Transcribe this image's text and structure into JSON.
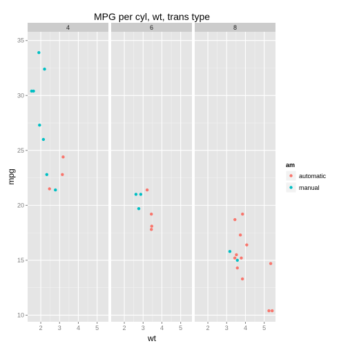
{
  "chart_data": {
    "type": "scatter",
    "title": "MPG per cyl, wt, trans type",
    "xlabel": "wt",
    "ylabel": "mpg",
    "xlim": [
      1.3,
      5.6
    ],
    "ylim": [
      9.4,
      35.8
    ],
    "xticks": [
      2,
      3,
      4,
      5
    ],
    "yticks": [
      10,
      15,
      20,
      25,
      30,
      35
    ],
    "grid": true,
    "legend_position": "right",
    "legend_title": "am",
    "series": [
      {
        "name": "automatic",
        "color": "#F8766D"
      },
      {
        "name": "manual",
        "color": "#00BFC4"
      }
    ],
    "facets": [
      {
        "label": "4",
        "points": [
          {
            "series": "automatic",
            "x": 2.465,
            "y": 21.5
          },
          {
            "series": "automatic",
            "x": 3.19,
            "y": 24.4
          },
          {
            "series": "automatic",
            "x": 3.15,
            "y": 22.8
          },
          {
            "series": "manual",
            "x": 2.2,
            "y": 32.4
          },
          {
            "series": "manual",
            "x": 1.9,
            "y": 33.9
          },
          {
            "series": "manual",
            "x": 1.615,
            "y": 30.4
          },
          {
            "series": "manual",
            "x": 1.513,
            "y": 30.4
          },
          {
            "series": "manual",
            "x": 1.935,
            "y": 27.3
          },
          {
            "series": "manual",
            "x": 2.14,
            "y": 26.0
          },
          {
            "series": "manual",
            "x": 2.32,
            "y": 22.8
          },
          {
            "series": "manual",
            "x": 2.78,
            "y": 21.4
          }
        ]
      },
      {
        "label": "6",
        "points": [
          {
            "series": "automatic",
            "x": 3.215,
            "y": 21.4
          },
          {
            "series": "automatic",
            "x": 3.46,
            "y": 18.1
          },
          {
            "series": "automatic",
            "x": 3.44,
            "y": 19.2
          },
          {
            "series": "automatic",
            "x": 3.44,
            "y": 17.8
          },
          {
            "series": "manual",
            "x": 2.62,
            "y": 21.0
          },
          {
            "series": "manual",
            "x": 2.875,
            "y": 21.0
          },
          {
            "series": "manual",
            "x": 2.77,
            "y": 19.7
          }
        ]
      },
      {
        "label": "8",
        "points": [
          {
            "series": "automatic",
            "x": 3.44,
            "y": 18.7
          },
          {
            "series": "automatic",
            "x": 3.57,
            "y": 14.3
          },
          {
            "series": "automatic",
            "x": 4.07,
            "y": 16.4
          },
          {
            "series": "automatic",
            "x": 3.73,
            "y": 17.3
          },
          {
            "series": "automatic",
            "x": 3.78,
            "y": 15.2
          },
          {
            "series": "automatic",
            "x": 5.25,
            "y": 10.4
          },
          {
            "series": "automatic",
            "x": 5.424,
            "y": 10.4
          },
          {
            "series": "automatic",
            "x": 5.345,
            "y": 14.7
          },
          {
            "series": "automatic",
            "x": 3.52,
            "y": 15.5
          },
          {
            "series": "automatic",
            "x": 3.435,
            "y": 15.2
          },
          {
            "series": "automatic",
            "x": 3.84,
            "y": 13.3
          },
          {
            "series": "automatic",
            "x": 3.845,
            "y": 19.2
          },
          {
            "series": "manual",
            "x": 3.17,
            "y": 15.8
          },
          {
            "series": "manual",
            "x": 3.57,
            "y": 15.0
          }
        ]
      }
    ]
  }
}
